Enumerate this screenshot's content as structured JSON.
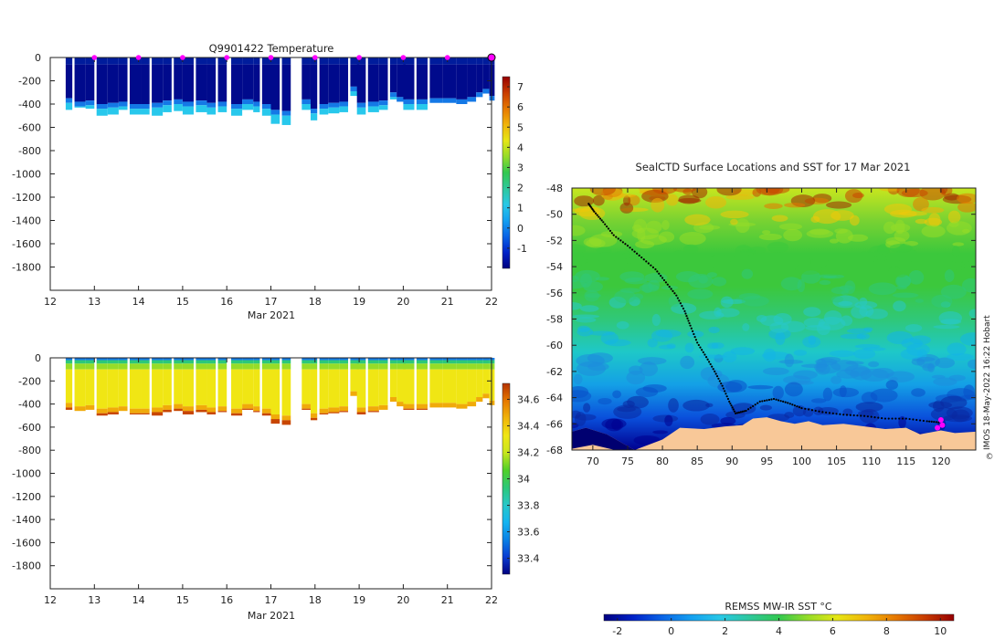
{
  "colors": {
    "temperature": [
      "#000080",
      "#0022c8",
      "#0a64e6",
      "#14a0f0",
      "#28c8e6",
      "#2ec89b",
      "#32c850",
      "#96dc28",
      "#e6e614",
      "#f0b40a",
      "#e67800",
      "#c83c00",
      "#960000"
    ],
    "salinity": [
      "#000080",
      "#0a3cd2",
      "#0a82e6",
      "#14b4f0",
      "#28c8c8",
      "#2cc878",
      "#50d028",
      "#c8e61e",
      "#f0e614",
      "#f0b40a",
      "#e67800",
      "#b43200"
    ],
    "land": "#f8c898",
    "marker": "#ff00ff",
    "track": "#000000"
  },
  "chart_data": [
    {
      "type": "heatmap",
      "title": "Q9901422  Temperature",
      "xlabel": "Mar 2021",
      "x_ticks": [
        "12",
        "13",
        "14",
        "15",
        "16",
        "17",
        "18",
        "19",
        "20",
        "21",
        "22"
      ],
      "xlim": [
        12,
        22
      ],
      "y_ticks": [
        "0",
        "-200",
        "-400",
        "-600",
        "-800",
        "-1000",
        "-1200",
        "-1400",
        "-1600",
        "-1800"
      ],
      "ylim": [
        -2000,
        0
      ],
      "colorbar_ticks": [
        "-1",
        "0",
        "1",
        "2",
        "3",
        "4",
        "5",
        "6",
        "7"
      ],
      "colorbar_range": [
        -2,
        7.5
      ],
      "surface_markers_day": [
        13.0,
        14.0,
        15.0,
        16.0,
        17.0,
        18.0,
        19.0,
        20.0,
        21.0,
        22.0
      ],
      "profiles": [
        {
          "day": 12.35,
          "width": 0.15,
          "mixed": -350,
          "bottom": -450
        },
        {
          "day": 12.55,
          "width": 0.25,
          "mixed": -380,
          "bottom": -430
        },
        {
          "day": 12.8,
          "width": 0.2,
          "mixed": -370,
          "bottom": -440
        },
        {
          "day": 13.05,
          "width": 0.25,
          "mixed": -400,
          "bottom": -500
        },
        {
          "day": 13.3,
          "width": 0.25,
          "mixed": -390,
          "bottom": -490
        },
        {
          "day": 13.55,
          "width": 0.2,
          "mixed": -380,
          "bottom": -450
        },
        {
          "day": 13.8,
          "width": 0.25,
          "mixed": -400,
          "bottom": -490
        },
        {
          "day": 14.05,
          "width": 0.2,
          "mixed": -400,
          "bottom": -490
        },
        {
          "day": 14.3,
          "width": 0.25,
          "mixed": -390,
          "bottom": -500
        },
        {
          "day": 14.55,
          "width": 0.2,
          "mixed": -370,
          "bottom": -470
        },
        {
          "day": 14.8,
          "width": 0.2,
          "mixed": -360,
          "bottom": -460
        },
        {
          "day": 15.0,
          "width": 0.25,
          "mixed": -380,
          "bottom": -490
        },
        {
          "day": 15.3,
          "width": 0.25,
          "mixed": -370,
          "bottom": -470
        },
        {
          "day": 15.55,
          "width": 0.2,
          "mixed": -390,
          "bottom": -490
        },
        {
          "day": 15.8,
          "width": 0.2,
          "mixed": -380,
          "bottom": -470
        },
        {
          "day": 16.1,
          "width": 0.25,
          "mixed": -400,
          "bottom": -500
        },
        {
          "day": 16.35,
          "width": 0.25,
          "mixed": -360,
          "bottom": -450
        },
        {
          "day": 16.6,
          "width": 0.15,
          "mixed": -380,
          "bottom": -470
        },
        {
          "day": 16.8,
          "width": 0.2,
          "mixed": -400,
          "bottom": -500
        },
        {
          "day": 17.0,
          "width": 0.2,
          "mixed": -450,
          "bottom": -570
        },
        {
          "day": 17.25,
          "width": 0.2,
          "mixed": -460,
          "bottom": -580
        },
        {
          "day": 17.7,
          "width": 0.2,
          "mixed": -360,
          "bottom": -450
        },
        {
          "day": 17.9,
          "width": 0.15,
          "mixed": -440,
          "bottom": -540
        },
        {
          "day": 18.1,
          "width": 0.2,
          "mixed": -400,
          "bottom": -490
        },
        {
          "day": 18.3,
          "width": 0.25,
          "mixed": -390,
          "bottom": -480
        },
        {
          "day": 18.55,
          "width": 0.2,
          "mixed": -380,
          "bottom": -470
        },
        {
          "day": 18.8,
          "width": 0.2,
          "mixed": -250,
          "bottom": -330
        },
        {
          "day": 18.95,
          "width": 0.2,
          "mixed": -390,
          "bottom": -490
        },
        {
          "day": 19.2,
          "width": 0.25,
          "mixed": -380,
          "bottom": -470
        },
        {
          "day": 19.45,
          "width": 0.2,
          "mixed": -370,
          "bottom": -450
        },
        {
          "day": 19.7,
          "width": 0.15,
          "mixed": -300,
          "bottom": -360
        },
        {
          "day": 19.85,
          "width": 0.2,
          "mixed": -340,
          "bottom": -380
        },
        {
          "day": 20.0,
          "width": 0.25,
          "mixed": -360,
          "bottom": -450
        },
        {
          "day": 20.3,
          "width": 0.25,
          "mixed": -360,
          "bottom": -450
        },
        {
          "day": 20.6,
          "width": 0.3,
          "mixed": -350,
          "bottom": -350
        },
        {
          "day": 20.9,
          "width": 0.3,
          "mixed": -350,
          "bottom": -350
        },
        {
          "day": 21.2,
          "width": 0.25,
          "mixed": -360,
          "bottom": -390
        },
        {
          "day": 21.45,
          "width": 0.2,
          "mixed": -340,
          "bottom": -380
        },
        {
          "day": 21.65,
          "width": 0.15,
          "mixed": -300,
          "bottom": -330
        },
        {
          "day": 21.8,
          "width": 0.15,
          "mixed": -270,
          "bottom": -300
        },
        {
          "day": 21.95,
          "width": 0.12,
          "mixed": -330,
          "bottom": -350
        }
      ]
    },
    {
      "type": "heatmap",
      "title": "",
      "xlabel": "Mar 2021",
      "x_ticks": [
        "12",
        "13",
        "14",
        "15",
        "16",
        "17",
        "18",
        "19",
        "20",
        "21",
        "22"
      ],
      "xlim": [
        12,
        22
      ],
      "y_ticks": [
        "0",
        "-200",
        "-400",
        "-600",
        "-800",
        "-1000",
        "-1200",
        "-1400",
        "-1600",
        "-1800"
      ],
      "ylim": [
        -2000,
        0
      ],
      "colorbar_ticks": [
        "33.4",
        "33.6",
        "33.8",
        "34",
        "34.2",
        "34.4",
        "34.6"
      ],
      "colorbar_range": [
        33.28,
        34.72
      ]
    },
    {
      "type": "heatmap",
      "title": "SealCTD Surface Locations and SST for 17 Mar 2021",
      "x_ticks": [
        "70",
        "75",
        "80",
        "85",
        "90",
        "95",
        "100",
        "105",
        "110",
        "115",
        "120"
      ],
      "xlim": [
        67,
        125
      ],
      "y_ticks": [
        "-48",
        "-50",
        "-52",
        "-54",
        "-56",
        "-58",
        "-60",
        "-62",
        "-64",
        "-66",
        "-68"
      ],
      "ylim": [
        -68,
        -48
      ],
      "colorbar_label": "REMSS MW-IR SST °C",
      "colorbar_ticks": [
        "-2",
        "0",
        "2",
        "4",
        "6",
        "8",
        "10"
      ],
      "colorbar_range": [
        -2.5,
        10.5
      ],
      "track": [
        [
          69.4,
          -49.2
        ],
        [
          70.2,
          -49.8
        ],
        [
          71.5,
          -50.6
        ],
        [
          73,
          -51.6
        ],
        [
          75,
          -52.4
        ],
        [
          77,
          -53.3
        ],
        [
          79,
          -54.2
        ],
        [
          80.5,
          -55.2
        ],
        [
          82,
          -56.2
        ],
        [
          83.2,
          -57.4
        ],
        [
          84,
          -58.5
        ],
        [
          85,
          -59.8
        ],
        [
          86.3,
          -60.9
        ],
        [
          87.5,
          -62
        ],
        [
          88.6,
          -63.1
        ],
        [
          89.6,
          -64.3
        ],
        [
          90.5,
          -65.2
        ],
        [
          92,
          -65
        ],
        [
          94,
          -64.3
        ],
        [
          96,
          -64.1
        ],
        [
          98,
          -64.4
        ],
        [
          100,
          -64.8
        ],
        [
          103,
          -65.1
        ],
        [
          106,
          -65.3
        ],
        [
          109,
          -65.4
        ],
        [
          112,
          -65.6
        ],
        [
          115,
          -65.6
        ],
        [
          118,
          -65.8
        ],
        [
          120,
          -65.9
        ]
      ],
      "current_positions": [
        [
          120,
          -65.7
        ],
        [
          119.5,
          -66.3
        ],
        [
          120.2,
          -66.1
        ]
      ],
      "watermark": "IMOS 18-May-2022 16:22 Hobart"
    }
  ]
}
